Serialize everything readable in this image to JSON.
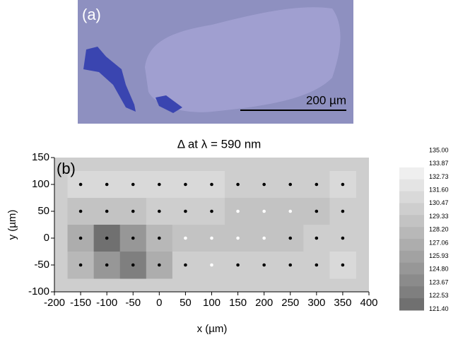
{
  "panel_a": {
    "label": "(a)",
    "scale_bar": "200 µm"
  },
  "chart_data": {
    "type": "contour",
    "title": "Δ at λ = 590 nm",
    "panel_label": "(b)",
    "x_label": "x (µm)",
    "y_label": "y (µm)",
    "x": [
      -150,
      -100,
      -50,
      0,
      50,
      100,
      150,
      200,
      250,
      300,
      350
    ],
    "y": [
      100,
      50,
      0,
      -50
    ],
    "z": [
      [
        131.8,
        131.8,
        131.8,
        131.8,
        131.8,
        131.8,
        130.8,
        130.5,
        130.8,
        131.5,
        131.8
      ],
      [
        130.2,
        129.5,
        129.8,
        130.8,
        131.2,
        130.8,
        130.2,
        129.8,
        129.8,
        130.3,
        131.0
      ],
      [
        127.5,
        122.5,
        125.5,
        129.0,
        129.8,
        130.0,
        129.8,
        129.6,
        130.0,
        130.8,
        131.2
      ],
      [
        129.0,
        125.0,
        123.0,
        128.0,
        130.5,
        130.8,
        130.6,
        130.8,
        131.2,
        131.5,
        131.6
      ]
    ],
    "marker_colors": [
      [
        "#000",
        "#000",
        "#000",
        "#000",
        "#000",
        "#000",
        "#000",
        "#000",
        "#000",
        "#000",
        "#000"
      ],
      [
        "#000",
        "#000",
        "#000",
        "#000",
        "#000",
        "#000",
        "#fff",
        "#fff",
        "#fff",
        "#000",
        "#000"
      ],
      [
        "#000",
        "#000",
        "#000",
        "#000",
        "#fff",
        "#fff",
        "#fff",
        "#fff",
        "#000",
        "#000",
        "#000"
      ],
      [
        "#000",
        "#000",
        "#000",
        "#000",
        "#000",
        "#fff",
        "#000",
        "#000",
        "#000",
        "#000",
        "#000"
      ]
    ],
    "xlim": [
      -200,
      400
    ],
    "ylim": [
      -100,
      150
    ],
    "xticks": [
      -200,
      -150,
      -100,
      -50,
      0,
      50,
      100,
      150,
      200,
      250,
      300,
      350,
      400
    ],
    "yticks": [
      -100,
      -50,
      0,
      50,
      100,
      150
    ],
    "levels": [
      {
        "value": 135,
        "label": "135.00"
      },
      133.87,
      132.73,
      {
        "value": 131.6,
        "label": "131.60"
      },
      130.47,
      129.33,
      {
        "value": 128.2,
        "label": "128.20"
      },
      127.06,
      125.93,
      {
        "value": 124.8,
        "label": "124.80"
      },
      123.67,
      122.53,
      {
        "value": 121.4,
        "label": "121.40"
      }
    ],
    "level_colors": [
      "#efefef",
      "#e4e4e4",
      "#d9d9d9",
      "#cecece",
      "#c3c3c3",
      "#b8b8b8",
      "#adadad",
      "#a2a2a2",
      "#979797",
      "#8b8b8b",
      "#7f7f7f",
      "#707070"
    ]
  }
}
